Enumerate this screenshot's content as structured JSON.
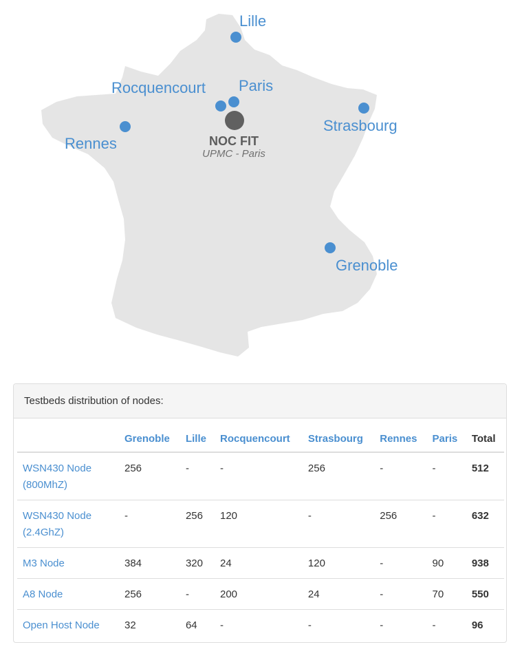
{
  "map": {
    "cities": [
      {
        "name": "Lille"
      },
      {
        "name": "Paris"
      },
      {
        "name": "Rocquencourt"
      },
      {
        "name": "Strasbourg"
      },
      {
        "name": "Rennes"
      },
      {
        "name": "Grenoble"
      }
    ],
    "noc": {
      "title": "NOC FIT",
      "subtitle": "UPMC - Paris"
    },
    "colors": {
      "land": "#e5e5e5",
      "city": "#4a8fd0",
      "noc": "#606060"
    }
  },
  "panel": {
    "heading": "Testbeds distribution of nodes:"
  },
  "table": {
    "columns": [
      "",
      "Grenoble",
      "Lille",
      "Rocquencourt",
      "Strasbourg",
      "Rennes",
      "Paris",
      "Total"
    ],
    "rows": [
      {
        "name": "WSN430 Node (800MhZ)",
        "cells": [
          "256",
          "-",
          "-",
          "256",
          "-",
          "-"
        ],
        "total": "512"
      },
      {
        "name": "WSN430 Node (2.4GhZ)",
        "cells": [
          "-",
          "256",
          "120",
          "-",
          "256",
          "-"
        ],
        "total": "632"
      },
      {
        "name": "M3 Node",
        "cells": [
          "384",
          "320",
          "24",
          "120",
          "-",
          "90"
        ],
        "total": "938"
      },
      {
        "name": "A8 Node",
        "cells": [
          "256",
          "-",
          "200",
          "24",
          "-",
          "70"
        ],
        "total": "550"
      },
      {
        "name": "Open Host Node",
        "cells": [
          "32",
          "64",
          "-",
          "-",
          "-",
          "-"
        ],
        "total": "96"
      }
    ]
  }
}
